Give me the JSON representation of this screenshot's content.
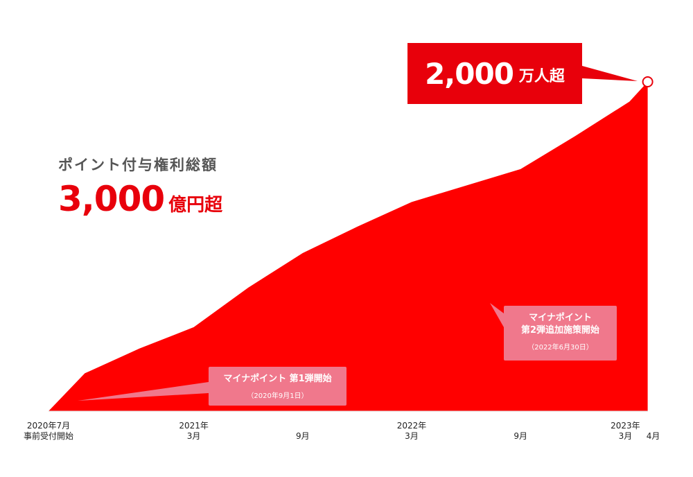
{
  "headline": {
    "value": "2,000",
    "unit": "万人超"
  },
  "side": {
    "label": "ポイント付与権利総額",
    "value": "3,000",
    "unit": "億円超"
  },
  "callouts": [
    {
      "title": "マイナポイント 第1弾開始",
      "date": "（2020年9月1日）"
    },
    {
      "title_line1": "マイナポイント",
      "title_line2": "第2弾追加施策開始",
      "date": "（2022年6月30日）"
    }
  ],
  "x_labels": [
    {
      "line1": "2020年7月",
      "line2": "事前受付開始"
    },
    {
      "line1": "2021年",
      "line2": "3月"
    },
    {
      "line1": "",
      "line2": "9月"
    },
    {
      "line1": "2022年",
      "line2": "3月"
    },
    {
      "line1": "",
      "line2": "9月"
    },
    {
      "line1": "2023年",
      "line2": "3月"
    },
    {
      "line1": "",
      "line2": "4月"
    }
  ],
  "colors": {
    "area": "#ff0000",
    "accent": "#e8000b",
    "callout": "#f0788c",
    "side_label": "#555555"
  },
  "chart_data": {
    "type": "area",
    "x": [
      "2020-07",
      "2020-09",
      "2020-12",
      "2021-03",
      "2021-06",
      "2021-09",
      "2021-12",
      "2022-03",
      "2022-06",
      "2022-09",
      "2022-12",
      "2023-03",
      "2023-04"
    ],
    "values": [
      0,
      230,
      380,
      510,
      750,
      960,
      1120,
      1270,
      1370,
      1470,
      1670,
      1880,
      2000
    ],
    "ylabel": "",
    "xlabel": "",
    "ylim": [
      0,
      2000
    ],
    "grid": false,
    "legend": "none"
  }
}
